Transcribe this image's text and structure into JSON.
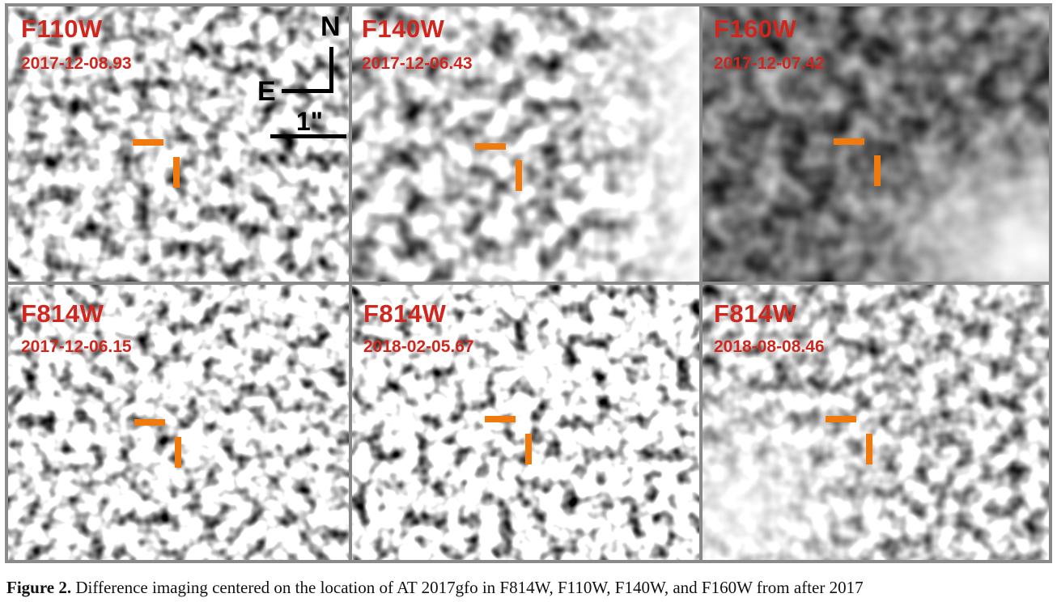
{
  "panels": [
    {
      "band": "F110W",
      "date": "2017-12-08.93",
      "intensity": 0.62
    },
    {
      "band": "F140W",
      "date": "2017-12-06.43",
      "intensity": 0.55
    },
    {
      "band": "F160W",
      "date": "2017-12-07.42",
      "intensity": 0.72
    },
    {
      "band": "F814W",
      "date": "2017-12-06.15",
      "intensity": 0.7
    },
    {
      "band": "F814W",
      "date": "2018-02-05.67",
      "intensity": 0.78
    },
    {
      "band": "F814W",
      "date": "2018-08-08.46",
      "intensity": 0.55
    }
  ],
  "compass": {
    "north": "N",
    "east": "E",
    "scale": "1\""
  },
  "caption": {
    "label": "Figure 2.",
    "text": "Difference imaging centered on the location of AT 2017gfo in F814W, F110W, F140W, and F160W from after 2017"
  },
  "colors": {
    "label": "#d0261d",
    "marker": "#f07a0e"
  }
}
